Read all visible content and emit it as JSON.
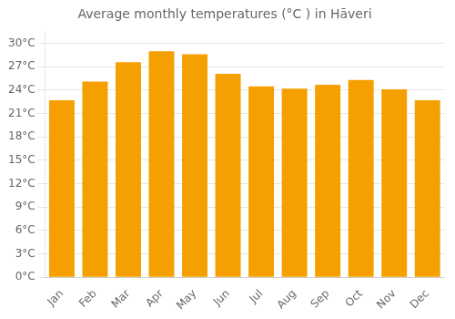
{
  "chart_data": {
    "type": "bar",
    "title": "Average monthly temperatures (°C ) in Hāveri",
    "categories": [
      "Jan",
      "Feb",
      "Mar",
      "Apr",
      "May",
      "Jun",
      "Jul",
      "Aug",
      "Sep",
      "Oct",
      "Nov",
      "Dec"
    ],
    "values": [
      22.7,
      25.1,
      27.6,
      29.0,
      28.6,
      26.1,
      24.5,
      24.2,
      24.7,
      25.3,
      24.1,
      22.7
    ],
    "color": "#F5A000",
    "ylim": [
      0,
      31.5
    ],
    "yticks": [
      {
        "value": 0,
        "label": "0°C"
      },
      {
        "value": 3,
        "label": "3°C"
      },
      {
        "value": 6,
        "label": "6°C"
      },
      {
        "value": 9,
        "label": "9°C"
      },
      {
        "value": 12,
        "label": "12°C"
      },
      {
        "value": 15,
        "label": "15°C"
      },
      {
        "value": 18,
        "label": "18°C"
      },
      {
        "value": 21,
        "label": "21°C"
      },
      {
        "value": 24,
        "label": "24°C"
      },
      {
        "value": 27,
        "label": "27°C"
      },
      {
        "value": 30,
        "label": "30°C"
      }
    ],
    "grid": true
  }
}
